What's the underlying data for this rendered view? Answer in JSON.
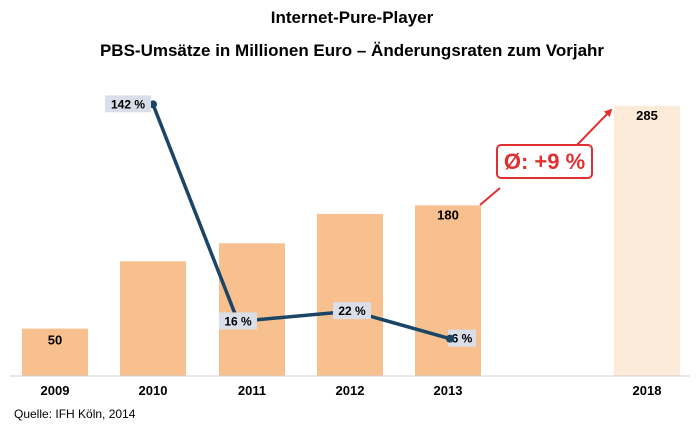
{
  "chart_data": {
    "type": "bar",
    "title": "Internet-Pure-Player",
    "subtitle": "PBS-Umsätze in Millionen Euro – Änderungsraten zum Vorjahr",
    "categories": [
      "2009",
      "2010",
      "2011",
      "2012",
      "2013",
      "2018"
    ],
    "series": [
      {
        "values": [
          50,
          121,
          140,
          171,
          180,
          285
        ]
      }
    ],
    "value_labels": [
      "50",
      "",
      "",
      "",
      "180",
      "285"
    ],
    "projected_category": "2018",
    "line_series": {
      "type": "line",
      "categories": [
        "2010",
        "2011",
        "2012",
        "2013"
      ],
      "values": [
        142,
        16,
        22,
        6
      ],
      "labels": [
        "142 %",
        "16 %",
        "22 %",
        "6 %"
      ]
    },
    "annotation": "Ø: +9 %",
    "source": "Quelle: IFH Köln, 2014",
    "ylim": [
      0,
      300
    ],
    "grid": false,
    "colors": {
      "bar": "#f9c08f",
      "bar_projected": "#fdebd9",
      "line": "#1b4566",
      "annotation": "#e03030",
      "label_bg": "#d9dee8"
    }
  }
}
